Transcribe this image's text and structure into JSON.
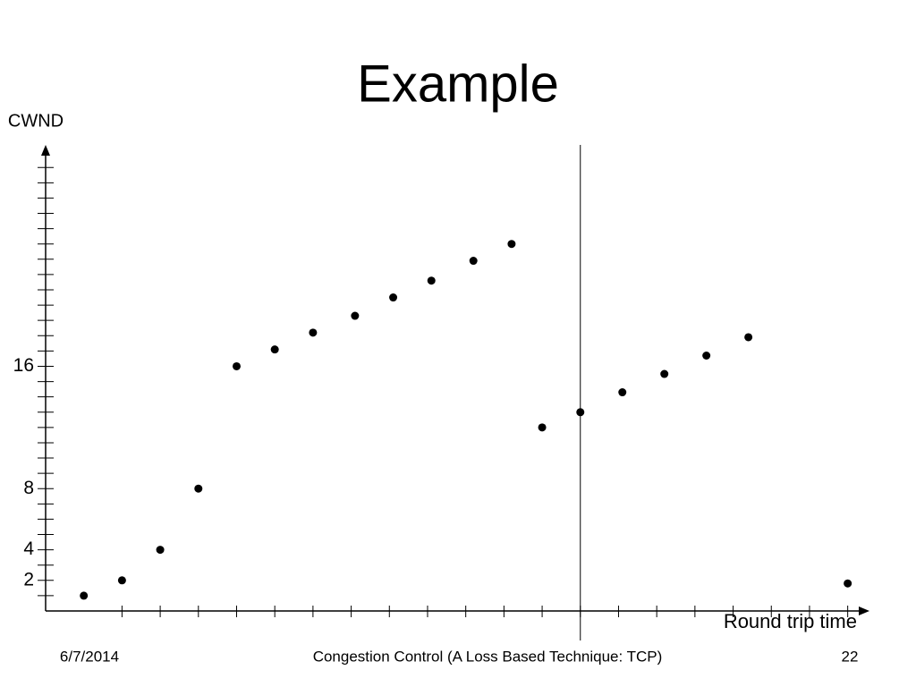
{
  "chart_data": {
    "type": "scatter",
    "title": "Example",
    "y_label": "CWND",
    "x_label": "Round trip time",
    "x": [
      1,
      2,
      3,
      4,
      5,
      6.0,
      7.0,
      8.1,
      9.1,
      10.1,
      11.2,
      12.2,
      13.0,
      14.0,
      15.1,
      16.2,
      17.3,
      18.4,
      21.0
    ],
    "values": [
      1,
      2,
      4,
      8,
      16,
      17.1,
      18.2,
      19.3,
      20.5,
      21.6,
      22.9,
      24.0,
      12.0,
      13.0,
      14.3,
      15.5,
      16.7,
      17.9,
      1.8
    ],
    "color": "#000000",
    "xlim": [
      0,
      21.5
    ],
    "ylim": [
      0,
      30.3
    ],
    "yticks": [
      2,
      4,
      8,
      16
    ],
    "yminorticks": [
      1,
      2,
      3,
      4,
      5,
      6,
      7,
      8,
      9,
      10,
      11,
      12,
      13,
      14,
      15,
      16,
      17,
      18,
      19,
      20,
      21,
      22,
      23,
      24,
      25,
      26,
      27,
      28,
      29
    ],
    "xminorticks": [
      2,
      3,
      4,
      5,
      6,
      7,
      8,
      9,
      10,
      11,
      12,
      13,
      14,
      15,
      16,
      17,
      18,
      19,
      20,
      21
    ],
    "vline_x": 14
  },
  "footer": {
    "date": "6/7/2014",
    "center": "Congestion Control (A Loss Based Technique: TCP)",
    "page": "22"
  }
}
